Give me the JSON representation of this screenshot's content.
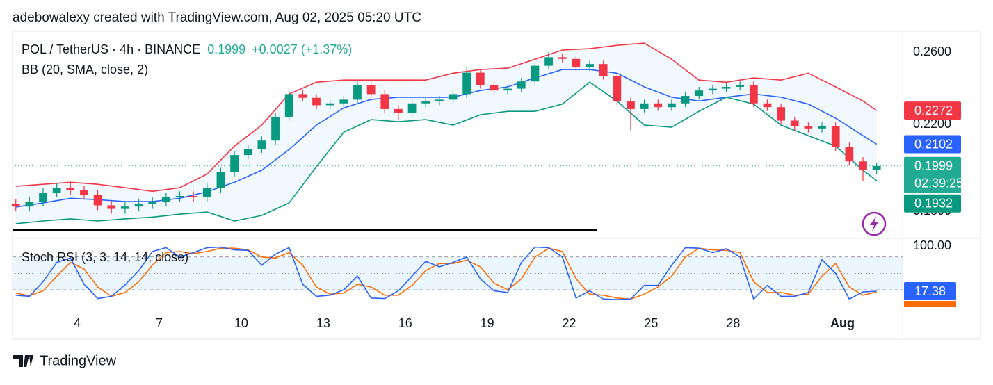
{
  "header": {
    "attribution": "adebowalexy created with TradingView.com, Aug 02, 2025 05:20 UTC",
    "brand": "TradingView"
  },
  "chart_data": [
    {
      "type": "candlestick",
      "title": "POL / TetherUS · 4h · BINANCE",
      "change": "+0.0027 (+1.37%)",
      "countdown": "02:39:25",
      "log": true,
      "grid": false,
      "up_color": "#089981",
      "down_color": "#f23645",
      "xlim": [
        1.63,
        34.2
      ],
      "xticks": [
        4,
        7,
        10,
        13,
        16,
        19,
        22,
        25,
        28,
        {
          "value": 32,
          "label": "Aug"
        }
      ],
      "ylim": [
        0.1699,
        0.2729
      ],
      "yticks": [
        {
          "value": 0.26,
          "label": "0.2600"
        },
        {
          "value": 0.22,
          "label": "0.2200"
        },
        {
          "value": 0.18,
          "label": "0.1800"
        }
      ],
      "x": [
        1.75,
        2.25,
        2.75,
        3.25,
        3.75,
        4.25,
        4.75,
        5.25,
        5.75,
        6.25,
        6.75,
        7.25,
        7.75,
        8.25,
        8.75,
        9.25,
        9.75,
        10.25,
        10.75,
        11.25,
        11.75,
        12.25,
        12.75,
        13.25,
        13.75,
        14.25,
        14.75,
        15.25,
        15.75,
        16.25,
        16.75,
        17.25,
        17.75,
        18.25,
        18.75,
        19.25,
        19.75,
        20.25,
        20.75,
        21.25,
        21.75,
        22.25,
        22.75,
        23.25,
        23.75,
        24.25,
        24.75,
        25.25,
        25.75,
        26.25,
        26.75,
        27.25,
        27.75,
        28.25,
        28.75,
        29.25,
        29.75,
        30.25,
        30.75,
        31.25,
        31.75,
        32.25,
        32.75,
        33.25
      ],
      "open": [
        0.183,
        0.182,
        0.184,
        0.188,
        0.19,
        0.189,
        0.187,
        0.1825,
        0.181,
        0.182,
        0.183,
        0.184,
        0.186,
        0.1865,
        0.186,
        0.19,
        0.197,
        0.205,
        0.208,
        0.212,
        0.224,
        0.236,
        0.234,
        0.23,
        0.231,
        0.233,
        0.241,
        0.236,
        0.228,
        0.226,
        0.231,
        0.232,
        0.233,
        0.236,
        0.248,
        0.241,
        0.238,
        0.239,
        0.243,
        0.252,
        0.257,
        0.256,
        0.251,
        0.253,
        0.246,
        0.232,
        0.228,
        0.231,
        0.229,
        0.231,
        0.235,
        0.238,
        0.239,
        0.24,
        0.241,
        0.231,
        0.229,
        0.222,
        0.219,
        0.218,
        0.219,
        0.209,
        0.202,
        0.198
      ],
      "high": [
        0.185,
        0.186,
        0.19,
        0.192,
        0.192,
        0.191,
        0.189,
        0.1845,
        0.184,
        0.185,
        0.186,
        0.188,
        0.1885,
        0.1885,
        0.192,
        0.199,
        0.207,
        0.21,
        0.214,
        0.226,
        0.238,
        0.238,
        0.236,
        0.233,
        0.235,
        0.243,
        0.243,
        0.238,
        0.23,
        0.233,
        0.234,
        0.235,
        0.238,
        0.251,
        0.25,
        0.243,
        0.241,
        0.245,
        0.254,
        0.26,
        0.259,
        0.258,
        0.255,
        0.255,
        0.248,
        0.234,
        0.233,
        0.233,
        0.233,
        0.237,
        0.24,
        0.241,
        0.242,
        0.243,
        0.243,
        0.233,
        0.231,
        0.224,
        0.221,
        0.221,
        0.221,
        0.211,
        0.204,
        0.2015
      ],
      "low": [
        0.18,
        0.18,
        0.182,
        0.186,
        0.187,
        0.185,
        0.1805,
        0.179,
        0.179,
        0.18,
        0.181,
        0.182,
        0.184,
        0.184,
        0.184,
        0.188,
        0.195,
        0.203,
        0.206,
        0.21,
        0.222,
        0.232,
        0.228,
        0.228,
        0.229,
        0.231,
        0.234,
        0.226,
        0.222,
        0.224,
        0.229,
        0.23,
        0.231,
        0.234,
        0.239,
        0.236,
        0.236,
        0.237,
        0.241,
        0.25,
        0.254,
        0.249,
        0.249,
        0.244,
        0.23,
        0.217,
        0.226,
        0.227,
        0.227,
        0.229,
        0.233,
        0.236,
        0.237,
        0.238,
        0.229,
        0.227,
        0.22,
        0.217,
        0.216,
        0.216,
        0.207,
        0.2,
        0.193,
        0.196
      ],
      "close": [
        0.182,
        0.184,
        0.188,
        0.19,
        0.189,
        0.187,
        0.1825,
        0.181,
        0.182,
        0.183,
        0.184,
        0.186,
        0.1865,
        0.186,
        0.19,
        0.197,
        0.205,
        0.208,
        0.212,
        0.224,
        0.236,
        0.234,
        0.23,
        0.231,
        0.233,
        0.241,
        0.236,
        0.228,
        0.226,
        0.231,
        0.232,
        0.233,
        0.236,
        0.248,
        0.241,
        0.238,
        0.239,
        0.243,
        0.252,
        0.257,
        0.256,
        0.251,
        0.253,
        0.246,
        0.232,
        0.228,
        0.231,
        0.229,
        0.231,
        0.235,
        0.238,
        0.239,
        0.24,
        0.241,
        0.231,
        0.229,
        0.222,
        0.219,
        0.218,
        0.219,
        0.209,
        0.202,
        0.198,
        0.1999
      ],
      "last_color": "#22ab94",
      "bands": {
        "label": "BB (20, SMA, close, 2)",
        "fill": "rgba(33,150,243,0.06)",
        "x": [
          1.75,
          2.75,
          3.75,
          4.75,
          5.75,
          6.75,
          7.75,
          8.75,
          9.75,
          10.75,
          11.75,
          12.75,
          13.75,
          14.75,
          15.75,
          16.75,
          17.75,
          18.75,
          19.75,
          20.75,
          21.75,
          22.75,
          23.75,
          24.75,
          25.75,
          26.75,
          27.75,
          28.75,
          29.75,
          30.75,
          31.75,
          32.75,
          33.25
        ],
        "upper": {
          "color": "#f23645",
          "values": [
            0.1907,
            0.1916,
            0.1925,
            0.1916,
            0.1901,
            0.1885,
            0.1901,
            0.1962,
            0.2093,
            0.2197,
            0.2361,
            0.2426,
            0.2438,
            0.2438,
            0.2438,
            0.2438,
            0.2477,
            0.2498,
            0.2506,
            0.2558,
            0.2613,
            0.2621,
            0.2642,
            0.2655,
            0.2558,
            0.2438,
            0.2426,
            0.245,
            0.2438,
            0.2477,
            0.24,
            0.2323,
            0.2272
          ]
        },
        "basis": {
          "color": "#2962ff",
          "values": [
            0.1818,
            0.1835,
            0.1855,
            0.1849,
            0.1841,
            0.1841,
            0.1855,
            0.1883,
            0.1925,
            0.1979,
            0.2076,
            0.2197,
            0.2286,
            0.2331,
            0.2343,
            0.2343,
            0.2343,
            0.238,
            0.24,
            0.245,
            0.2498,
            0.2498,
            0.2477,
            0.24,
            0.2343,
            0.2323,
            0.2343,
            0.2361,
            0.2343,
            0.2306,
            0.2232,
            0.2144,
            0.2102
          ]
        },
        "lower": {
          "color": "#089981",
          "values": [
            0.1749,
            0.176,
            0.1769,
            0.176,
            0.1769,
            0.1776,
            0.1788,
            0.1797,
            0.176,
            0.1783,
            0.1835,
            0.1995,
            0.2161,
            0.2225,
            0.2214,
            0.2225,
            0.2197,
            0.225,
            0.2268,
            0.2268,
            0.2306,
            0.2426,
            0.2323,
            0.2197,
            0.2186,
            0.2268,
            0.2343,
            0.2306,
            0.2197,
            0.2144,
            0.2093,
            0.1979,
            0.1932
          ]
        }
      }
    },
    {
      "type": "line",
      "title": "Stoch RSI (3, 3, 14, 14, close)",
      "ylim": [
        -22,
        111.5
      ],
      "yticks": [
        {
          "value": 100,
          "label": "100.00"
        }
      ],
      "band_levels": [
        80,
        50,
        20
      ],
      "band_fill": "rgba(33,150,243,0.09)",
      "series": [
        {
          "color": "#2962ff",
          "values": [
            10,
            8,
            35,
            70,
            78,
            30,
            4,
            8,
            29,
            55,
            90,
            97,
            80,
            88,
            97,
            98,
            93,
            92,
            65,
            85,
            97,
            30,
            8,
            10,
            20,
            45,
            5,
            4,
            18,
            45,
            72,
            62,
            70,
            80,
            40,
            18,
            15,
            70,
            98,
            97,
            80,
            5,
            18,
            3,
            2,
            3,
            28,
            28,
            65,
            97,
            96,
            88,
            95,
            80,
            3,
            28,
            8,
            8,
            15,
            75,
            50,
            3,
            16,
            17.38
          ]
        },
        {
          "color": "#ff6d00",
          "values": [
            14,
            9,
            18,
            45,
            70,
            58,
            25,
            8,
            15,
            35,
            65,
            88,
            90,
            86,
            90,
            96,
            96,
            93,
            80,
            78,
            88,
            65,
            25,
            12,
            14,
            30,
            25,
            10,
            10,
            28,
            55,
            68,
            68,
            74,
            62,
            32,
            20,
            40,
            80,
            96,
            90,
            40,
            12,
            10,
            5,
            3,
            12,
            25,
            45,
            80,
            96,
            93,
            92,
            88,
            35,
            15,
            15,
            10,
            12,
            45,
            68,
            25,
            10,
            16
          ]
        }
      ]
    }
  ]
}
